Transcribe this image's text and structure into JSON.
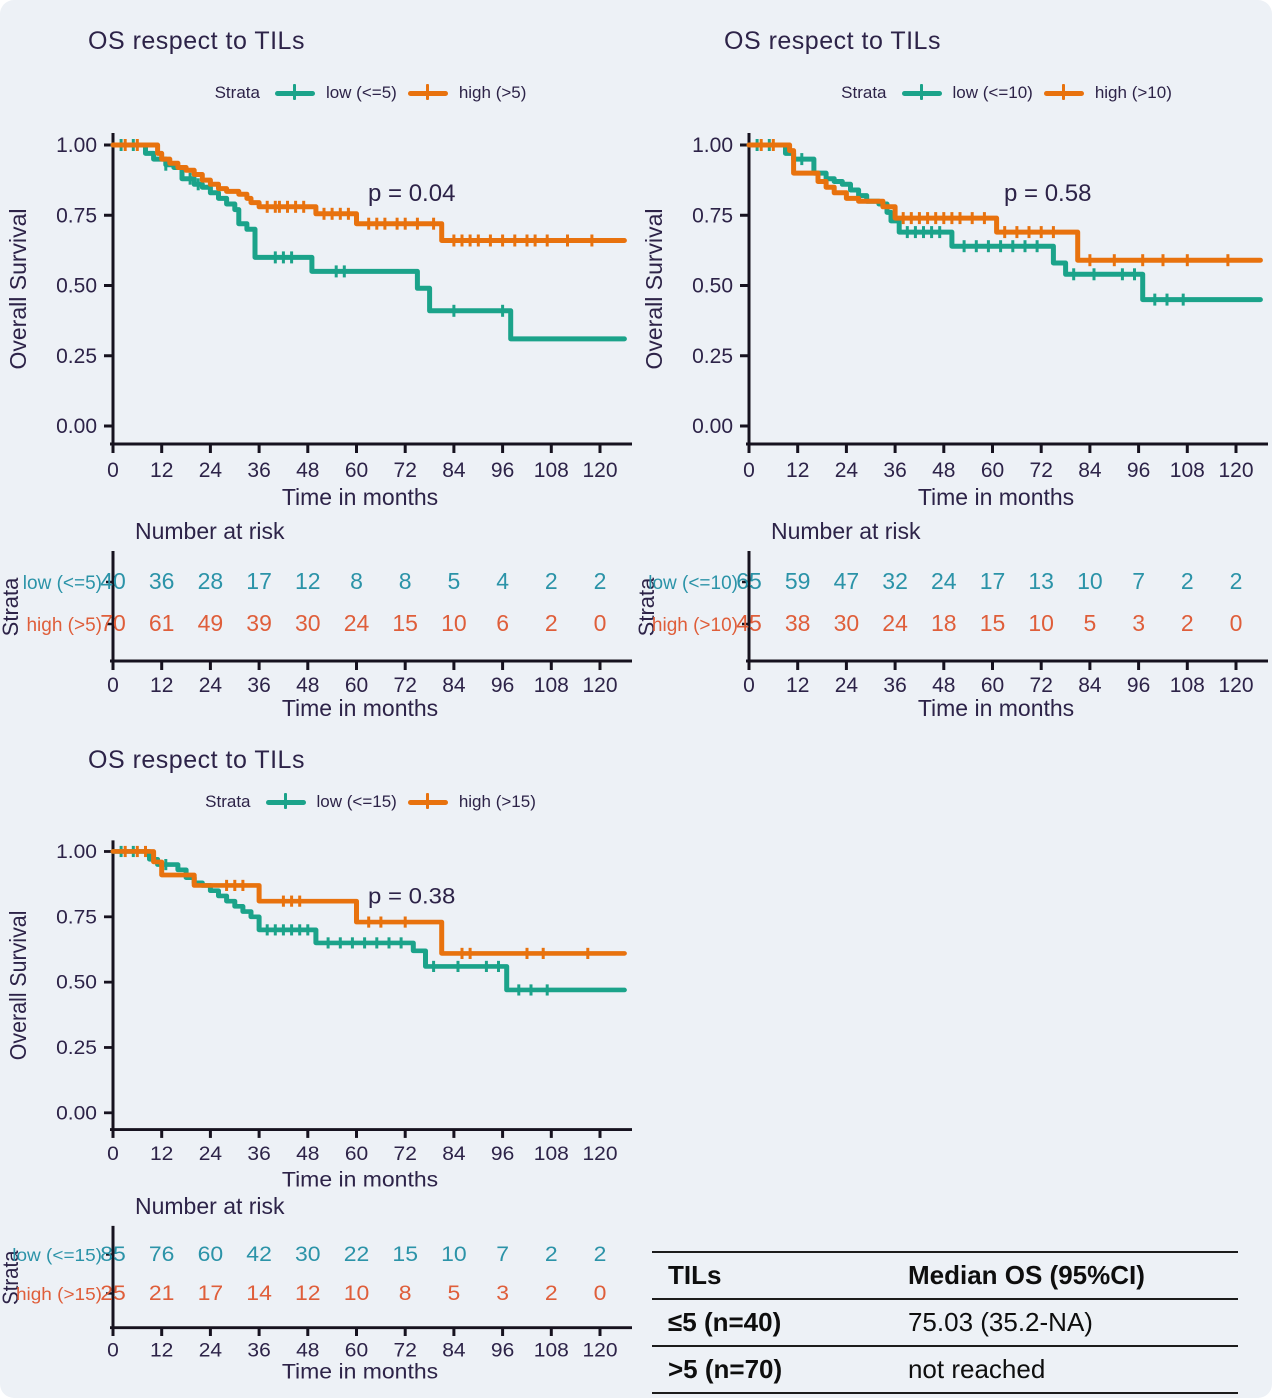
{
  "colors": {
    "teal": "#1ba38a",
    "orange": "#e8720e",
    "teal_table": "#2b93a8",
    "orange_table": "#df5e3a",
    "text": "#2d2348",
    "axis": "#16121f"
  },
  "charts": [
    {
      "title": "OS respect to TILs",
      "p_value": "p = 0.04",
      "xlabel": "Time in months",
      "ylabel": "Overall Survival",
      "xticks": [
        0,
        12,
        24,
        36,
        48,
        60,
        72,
        84,
        96,
        108,
        120
      ],
      "yticks": [
        "0.00",
        "0.25",
        "0.50",
        "0.75",
        "1.00"
      ],
      "xlim": [
        0,
        127
      ],
      "ylim": [
        0,
        1
      ],
      "legend": {
        "title": "Strata",
        "low": "low (<=5)",
        "high": "high (>5)"
      },
      "series": [
        {
          "name": "low (<=5)",
          "color_key": "teal",
          "steps": [
            [
              0,
              1.0
            ],
            [
              8,
              0.97
            ],
            [
              10,
              0.95
            ],
            [
              13,
              0.93
            ],
            [
              15,
              0.92
            ],
            [
              17,
              0.88
            ],
            [
              20,
              0.86
            ],
            [
              22,
              0.85
            ],
            [
              24,
              0.83
            ],
            [
              26,
              0.81
            ],
            [
              28,
              0.79
            ],
            [
              30,
              0.77
            ],
            [
              31,
              0.72
            ],
            [
              33,
              0.7
            ],
            [
              35,
              0.6
            ],
            [
              49,
              0.55
            ],
            [
              75,
              0.49
            ],
            [
              78,
              0.41
            ],
            [
              98,
              0.31
            ],
            [
              126,
              0.31
            ]
          ],
          "censors": [
            2,
            5,
            13,
            19,
            21,
            40,
            42,
            44,
            55,
            57,
            84,
            96
          ]
        },
        {
          "name": "high (>5)",
          "color_key": "orange",
          "steps": [
            [
              0,
              1.0
            ],
            [
              11,
              0.97
            ],
            [
              12,
              0.95
            ],
            [
              14,
              0.935
            ],
            [
              16,
              0.92
            ],
            [
              18,
              0.91
            ],
            [
              20,
              0.895
            ],
            [
              22,
              0.875
            ],
            [
              24,
              0.86
            ],
            [
              26,
              0.845
            ],
            [
              28,
              0.835
            ],
            [
              31,
              0.825
            ],
            [
              33,
              0.81
            ],
            [
              34,
              0.795
            ],
            [
              36,
              0.78
            ],
            [
              50,
              0.755
            ],
            [
              60,
              0.72
            ],
            [
              81,
              0.66
            ],
            [
              126,
              0.66
            ]
          ],
          "censors": [
            3,
            6,
            38,
            40,
            41,
            43,
            45,
            47,
            52,
            54,
            56,
            58,
            63,
            65,
            67,
            70,
            72,
            75,
            79,
            84,
            86,
            88,
            90,
            93,
            96,
            99,
            102,
            104,
            107,
            112,
            118
          ]
        }
      ]
    },
    {
      "title": "OS respect to TILs",
      "p_value": "p = 0.58",
      "xlabel": "Time in months",
      "ylabel": "Overall Survival",
      "xticks": [
        0,
        12,
        24,
        36,
        48,
        60,
        72,
        84,
        96,
        108,
        120
      ],
      "yticks": [
        "0.00",
        "0.25",
        "0.50",
        "0.75",
        "1.00"
      ],
      "xlim": [
        0,
        127
      ],
      "ylim": [
        0,
        1
      ],
      "legend": {
        "title": "Strata",
        "low": "low (<=10)",
        "high": "high (>10)"
      },
      "series": [
        {
          "name": "low (<=10)",
          "color_key": "teal",
          "steps": [
            [
              0,
              1.0
            ],
            [
              9,
              0.97
            ],
            [
              11,
              0.95
            ],
            [
              16,
              0.9
            ],
            [
              19,
              0.88
            ],
            [
              21,
              0.87
            ],
            [
              23,
              0.86
            ],
            [
              25,
              0.84
            ],
            [
              27,
              0.82
            ],
            [
              29,
              0.8
            ],
            [
              32,
              0.79
            ],
            [
              34,
              0.76
            ],
            [
              35,
              0.73
            ],
            [
              37,
              0.69
            ],
            [
              50,
              0.64
            ],
            [
              75,
              0.58
            ],
            [
              78,
              0.54
            ],
            [
              97,
              0.45
            ],
            [
              126,
              0.45
            ]
          ],
          "censors": [
            2,
            5,
            13,
            39,
            41,
            43,
            45,
            47,
            53,
            56,
            59,
            62,
            65,
            68,
            71,
            80,
            85,
            92,
            95,
            100,
            103,
            107
          ]
        },
        {
          "name": "high (>10)",
          "color_key": "orange",
          "steps": [
            [
              0,
              1.0
            ],
            [
              10,
              0.98
            ],
            [
              11,
              0.9
            ],
            [
              17,
              0.87
            ],
            [
              19,
              0.85
            ],
            [
              21,
              0.83
            ],
            [
              24,
              0.81
            ],
            [
              27,
              0.8
            ],
            [
              33,
              0.78
            ],
            [
              36,
              0.74
            ],
            [
              61,
              0.69
            ],
            [
              81,
              0.59
            ],
            [
              126,
              0.59
            ]
          ],
          "censors": [
            3,
            6,
            38,
            40,
            42,
            44,
            46,
            48,
            50,
            52,
            55,
            58,
            63,
            66,
            69,
            72,
            75,
            84,
            90,
            97,
            102,
            108,
            118
          ]
        }
      ]
    },
    {
      "title": "OS respect to TILs",
      "p_value": "p = 0.38",
      "xlabel": "Time in months",
      "ylabel": "Overall Survival",
      "xticks": [
        0,
        12,
        24,
        36,
        48,
        60,
        72,
        84,
        96,
        108,
        120
      ],
      "yticks": [
        "0.00",
        "0.25",
        "0.50",
        "0.75",
        "1.00"
      ],
      "xlim": [
        0,
        127
      ],
      "ylim": [
        0,
        1
      ],
      "legend": {
        "title": "Strata",
        "low": "low (<=15)",
        "high": "high (>15)"
      },
      "series": [
        {
          "name": "low (<=15)",
          "color_key": "teal",
          "steps": [
            [
              0,
              1.0
            ],
            [
              9,
              0.97
            ],
            [
              11,
              0.95
            ],
            [
              16,
              0.93
            ],
            [
              18,
              0.9
            ],
            [
              20,
              0.88
            ],
            [
              22,
              0.87
            ],
            [
              24,
              0.85
            ],
            [
              26,
              0.83
            ],
            [
              28,
              0.81
            ],
            [
              30,
              0.79
            ],
            [
              32,
              0.77
            ],
            [
              34,
              0.75
            ],
            [
              36,
              0.7
            ],
            [
              50,
              0.65
            ],
            [
              74,
              0.62
            ],
            [
              77,
              0.56
            ],
            [
              97,
              0.47
            ],
            [
              126,
              0.47
            ]
          ],
          "censors": [
            2,
            5,
            13,
            38,
            40,
            42,
            44,
            46,
            48,
            53,
            56,
            59,
            62,
            65,
            68,
            71,
            79,
            85,
            92,
            95,
            100,
            103,
            107
          ]
        },
        {
          "name": "high (>15)",
          "color_key": "orange",
          "steps": [
            [
              0,
              1.0
            ],
            [
              10,
              0.96
            ],
            [
              12,
              0.91
            ],
            [
              20,
              0.87
            ],
            [
              36,
              0.81
            ],
            [
              60,
              0.73
            ],
            [
              81,
              0.61
            ],
            [
              126,
              0.61
            ]
          ],
          "censors": [
            3,
            6,
            8,
            28,
            30,
            32,
            42,
            44,
            46,
            63,
            66,
            72,
            86,
            88,
            102,
            106,
            117
          ]
        }
      ]
    }
  ],
  "risk_tables": [
    {
      "heading": "Number at risk",
      "axis_label": "Strata",
      "xlabel": "Time in months",
      "xticks": [
        0,
        12,
        24,
        36,
        48,
        60,
        72,
        84,
        96,
        108,
        120
      ],
      "rows": [
        {
          "label": "low (<=5)",
          "color_key": "teal_table",
          "values": [
            40,
            36,
            28,
            17,
            12,
            8,
            8,
            5,
            4,
            2,
            2
          ]
        },
        {
          "label": "high (>5)",
          "color_key": "orange_table",
          "values": [
            70,
            61,
            49,
            39,
            30,
            24,
            15,
            10,
            6,
            2,
            0
          ]
        }
      ]
    },
    {
      "heading": "Number at risk",
      "axis_label": "Strata",
      "xlabel": "Time in months",
      "xticks": [
        0,
        12,
        24,
        36,
        48,
        60,
        72,
        84,
        96,
        108,
        120
      ],
      "rows": [
        {
          "label": "low (<=10)",
          "color_key": "teal_table",
          "values": [
            65,
            59,
            47,
            32,
            24,
            17,
            13,
            10,
            7,
            2,
            2
          ]
        },
        {
          "label": "high (>10)",
          "color_key": "orange_table",
          "values": [
            45,
            38,
            30,
            24,
            18,
            15,
            10,
            5,
            3,
            2,
            0
          ]
        }
      ]
    },
    {
      "heading": "Number at risk",
      "axis_label": "Strata",
      "xlabel": "Time in months",
      "xticks": [
        0,
        12,
        24,
        36,
        48,
        60,
        72,
        84,
        96,
        108,
        120
      ],
      "rows": [
        {
          "label": "low (<=15)",
          "color_key": "teal_table",
          "values": [
            85,
            76,
            60,
            42,
            30,
            22,
            15,
            10,
            7,
            2,
            2
          ]
        },
        {
          "label": "high (>15)",
          "color_key": "orange_table",
          "values": [
            25,
            21,
            17,
            14,
            12,
            10,
            8,
            5,
            3,
            2,
            0
          ]
        }
      ]
    }
  ],
  "summary_table": {
    "headers": [
      "TILs",
      "Median OS (95%CI)"
    ],
    "rows": [
      [
        "≤5 (n=40)",
        "75.03 (35.2-NA)"
      ],
      [
        ">5 (n=70)",
        "not reached"
      ]
    ]
  }
}
